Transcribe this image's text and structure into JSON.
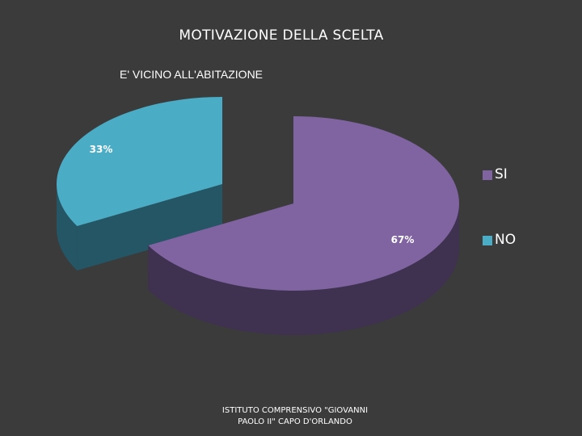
{
  "slide": {
    "title": "MOTIVAZIONE DELLA SCELTA",
    "footer_line1": "ISTITUTO COMPRENSIVO \"GIOVANNI",
    "footer_line2": "PAOLO II\" CAPO D'ORLANDO"
  },
  "chart_data": {
    "type": "pie",
    "title": "E' VICINO ALL'ABITAZIONE",
    "style": "3d-exploded",
    "legend_placement": "right",
    "categories": [
      "SI",
      "NO"
    ],
    "values": [
      67,
      33
    ],
    "data_labels": [
      "67%",
      "33%"
    ],
    "colors": [
      "#8064a2",
      "#4bacc6"
    ],
    "side_colors": [
      "#3f3150",
      "#245665"
    ]
  }
}
